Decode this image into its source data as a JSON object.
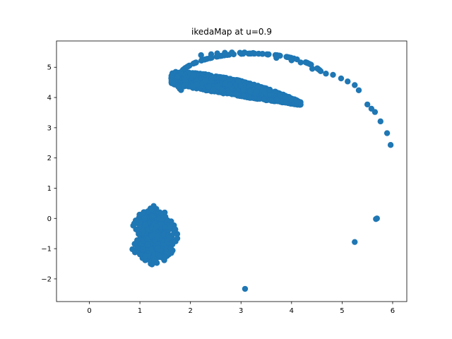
{
  "chart_data": {
    "type": "scatter",
    "title": "ikedaMap at u=0.9",
    "xlabel": "",
    "ylabel": "",
    "xlim": [
      -0.65,
      6.28
    ],
    "ylim": [
      -2.75,
      5.87
    ],
    "xticks": [
      0,
      1,
      2,
      3,
      4,
      5,
      6
    ],
    "yticks": [
      -2,
      -1,
      0,
      1,
      2,
      3,
      4,
      5
    ],
    "xtick_labels": [
      "0",
      "1",
      "2",
      "3",
      "4",
      "5",
      "6"
    ],
    "ytick_labels": [
      "−2",
      "−1",
      "0",
      "1",
      "2",
      "3",
      "4",
      "5"
    ],
    "grid": false,
    "legend": "none",
    "series": [
      {
        "color": "#1f77b4",
        "points": [
          [
            3.08,
            -2.33
          ],
          [
            5.25,
            -0.78
          ],
          [
            5.67,
            -0.02
          ],
          [
            5.69,
            0.0
          ],
          [
            5.96,
            2.43
          ],
          [
            5.89,
            2.82
          ],
          [
            5.76,
            3.21
          ],
          [
            5.65,
            3.52
          ],
          [
            5.58,
            3.63
          ],
          [
            5.5,
            3.77
          ],
          [
            5.33,
            4.24
          ],
          [
            5.25,
            4.41
          ],
          [
            5.11,
            4.53
          ],
          [
            4.98,
            4.63
          ],
          [
            4.82,
            4.75
          ],
          [
            4.68,
            4.79
          ],
          [
            4.41,
            4.95
          ],
          [
            4.18,
            5.16
          ],
          [
            4.0,
            5.23
          ],
          [
            3.7,
            5.31
          ],
          [
            3.53,
            5.42
          ],
          [
            3.24,
            5.47
          ],
          [
            3.07,
            5.49
          ],
          [
            2.98,
            5.48
          ],
          [
            2.82,
            5.49
          ],
          [
            2.68,
            5.48
          ],
          [
            2.53,
            5.46
          ],
          [
            2.41,
            5.43
          ],
          [
            2.21,
            5.4
          ]
        ],
        "clusters": [
          {
            "kind": "swirl",
            "cx": 0.62,
            "cy": -0.62,
            "r_in": 0.5,
            "r_out": 1.35,
            "a_start": 310,
            "a_end": 55,
            "count": 480
          },
          {
            "kind": "band",
            "x_from": 1.62,
            "x_to": 4.18,
            "count": 1500
          },
          {
            "kind": "arc",
            "cx": 3.2,
            "cy": 4.55,
            "rx": 1.55,
            "ry": 0.95,
            "a_start": 20,
            "a_end": 200,
            "count": 90
          }
        ]
      }
    ]
  }
}
